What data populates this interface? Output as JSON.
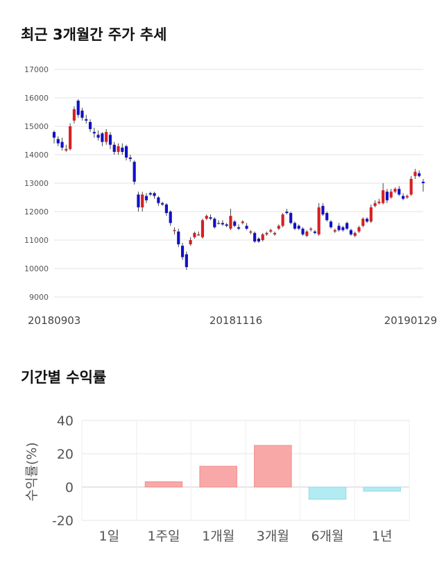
{
  "sections": {
    "trend_title": "최근 3개월간 주가 추세",
    "returns_title": "기간별 수익률"
  },
  "chart_data": [
    {
      "type": "candlestick",
      "title": "최근 3개월간 주가 추세",
      "ylim": [
        9000,
        17000
      ],
      "yticks": [
        9000,
        10000,
        11000,
        12000,
        13000,
        14000,
        15000,
        16000,
        17000
      ],
      "x_tick_labels": [
        "20180903",
        "20181116",
        "20190129"
      ],
      "grid": true,
      "up_color": "#d62020",
      "down_color": "#1010c8",
      "candles": [
        [
          14800,
          14600,
          14850,
          14400
        ],
        [
          14550,
          14400,
          14650,
          14300
        ],
        [
          14450,
          14250,
          14600,
          14150
        ],
        [
          14150,
          14200,
          14350,
          14100
        ],
        [
          14200,
          15000,
          15100,
          14150
        ],
        [
          15200,
          15600,
          15700,
          15100
        ],
        [
          15900,
          15400,
          15950,
          15300
        ],
        [
          15550,
          15300,
          15650,
          15200
        ],
        [
          15250,
          15200,
          15400,
          15100
        ],
        [
          15150,
          14900,
          15250,
          14800
        ],
        [
          14800,
          14750,
          14950,
          14600
        ],
        [
          14700,
          14600,
          14850,
          14500
        ],
        [
          14750,
          14450,
          14800,
          14300
        ],
        [
          14450,
          14800,
          14900,
          14350
        ],
        [
          14700,
          14350,
          14800,
          14200
        ],
        [
          14350,
          14100,
          14450,
          14000
        ],
        [
          14100,
          14300,
          14400,
          14000
        ],
        [
          14250,
          14100,
          14400,
          14000
        ],
        [
          14300,
          13900,
          14350,
          13800
        ],
        [
          13900,
          13850,
          14000,
          13750
        ],
        [
          13750,
          13050,
          13800,
          12950
        ],
        [
          12600,
          12150,
          12700,
          12000
        ],
        [
          12150,
          12600,
          12700,
          12000
        ],
        [
          12550,
          12400,
          12650,
          12300
        ],
        [
          12650,
          12600,
          12700,
          12550
        ],
        [
          12650,
          12550,
          12700,
          12450
        ],
        [
          12500,
          12300,
          12550,
          12200
        ],
        [
          12300,
          12250,
          12350,
          12200
        ],
        [
          12250,
          11950,
          12300,
          11850
        ],
        [
          12000,
          11600,
          12050,
          11500
        ],
        [
          11350,
          11350,
          11450,
          11200
        ],
        [
          11300,
          10850,
          11400,
          10750
        ],
        [
          10800,
          10400,
          10900,
          10300
        ],
        [
          10500,
          10050,
          10600,
          9950
        ],
        [
          10850,
          11000,
          11100,
          10800
        ],
        [
          11100,
          11250,
          11300,
          11050
        ],
        [
          11200,
          11200,
          11300,
          11150
        ],
        [
          11100,
          11700,
          11750,
          11050
        ],
        [
          11750,
          11850,
          11900,
          11700
        ],
        [
          11800,
          11750,
          11900,
          11700
        ],
        [
          11750,
          11450,
          11800,
          11400
        ],
        [
          11600,
          11600,
          11700,
          11550
        ],
        [
          11600,
          11550,
          11700,
          11500
        ],
        [
          11550,
          11500,
          11600,
          11450
        ],
        [
          11400,
          11850,
          12100,
          11350
        ],
        [
          11650,
          11500,
          11700,
          11450
        ],
        [
          11450,
          11400,
          11550,
          11350
        ],
        [
          11600,
          11650,
          11700,
          11550
        ],
        [
          11500,
          11400,
          11600,
          11350
        ],
        [
          11300,
          11300,
          11350,
          11200
        ],
        [
          11250,
          10950,
          11300,
          10900
        ],
        [
          11050,
          10950,
          11100,
          10900
        ],
        [
          11000,
          11200,
          11250,
          10950
        ],
        [
          11200,
          11250,
          11300,
          11150
        ],
        [
          11300,
          11350,
          11400,
          11250
        ],
        [
          11200,
          11250,
          11300,
          11150
        ],
        [
          11400,
          11500,
          11550,
          11350
        ],
        [
          11500,
          11900,
          11950,
          11450
        ],
        [
          12000,
          11950,
          12100,
          11900
        ],
        [
          11950,
          11600,
          12000,
          11550
        ],
        [
          11600,
          11400,
          11650,
          11350
        ],
        [
          11500,
          11400,
          11550,
          11350
        ],
        [
          11400,
          11200,
          11450,
          11150
        ],
        [
          11150,
          11300,
          11350,
          11100
        ],
        [
          11400,
          11400,
          11450,
          11300
        ],
        [
          11300,
          11250,
          11350,
          11200
        ],
        [
          11200,
          12150,
          12300,
          11150
        ],
        [
          12200,
          11900,
          12300,
          11850
        ],
        [
          11950,
          11700,
          12000,
          11650
        ],
        [
          11650,
          11450,
          11700,
          11400
        ],
        [
          11300,
          11350,
          11400,
          11250
        ],
        [
          11500,
          11350,
          11600,
          11300
        ],
        [
          11450,
          11350,
          11500,
          11300
        ],
        [
          11600,
          11400,
          11650,
          11350
        ],
        [
          11350,
          11200,
          11400,
          11150
        ],
        [
          11150,
          11250,
          11300,
          11100
        ],
        [
          11300,
          11450,
          11500,
          11250
        ],
        [
          11500,
          11750,
          11800,
          11450
        ],
        [
          11750,
          11650,
          11800,
          11600
        ],
        [
          11650,
          12150,
          12250,
          11600
        ],
        [
          12200,
          12300,
          12400,
          12150
        ],
        [
          12300,
          12350,
          12450,
          12250
        ],
        [
          12300,
          12750,
          13000,
          12250
        ],
        [
          12700,
          12400,
          12800,
          12300
        ],
        [
          12500,
          12700,
          12800,
          12450
        ],
        [
          12700,
          12800,
          12850,
          12650
        ],
        [
          12800,
          12600,
          12900,
          12550
        ],
        [
          12550,
          12450,
          12650,
          12400
        ],
        [
          12500,
          12550,
          12600,
          12450
        ],
        [
          12600,
          13150,
          13250,
          12550
        ],
        [
          13250,
          13400,
          13500,
          13150
        ],
        [
          13350,
          13250,
          13450,
          13200
        ],
        [
          13050,
          13000,
          13150,
          12700
        ]
      ]
    },
    {
      "type": "bar",
      "title": "기간별 수익률",
      "ylabel": "수익률(%)",
      "categories": [
        "1일",
        "1주일",
        "1개월",
        "3개월",
        "6개월",
        "1년"
      ],
      "values": [
        0,
        3.2,
        12.5,
        25.0,
        -7.3,
        -2.5
      ],
      "ylim": [
        -20,
        40
      ],
      "yticks": [
        40,
        20,
        0,
        -20
      ],
      "positive_color": "#f9a8a8",
      "negative_color": "#b3ebf2",
      "grid": true
    }
  ]
}
